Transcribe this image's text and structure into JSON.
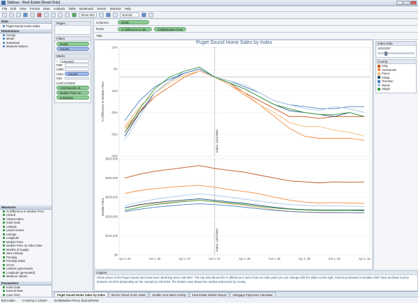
{
  "window": {
    "title": "Tableau - Real Estate [Read-Only]"
  },
  "menu": [
    "File",
    "Edit",
    "View",
    "Format",
    "Data",
    "Analysis",
    "Table",
    "Bookmark",
    "Server",
    "Window",
    "Help"
  ],
  "toolbar": {
    "show_me": "Show Me!",
    "fit": "Normal"
  },
  "data_pane": {
    "header": "Data",
    "datasource": "Puget Sound Home Sales",
    "dimensions_header": "Dimensions",
    "dimensions": [
      "County",
      "Month",
      "IndexDate",
      "Measure Names"
    ],
    "measures_header": "Measures",
    "measures": [
      "% Difference in Median Price",
      "Closed",
      "Closed Sales",
      "Index Date",
      "Latitude",
      "Listed Homes",
      "Listings",
      "Longitude",
      "Median Price",
      "Median Price on Index Date",
      "Months of Supply",
      "New Listings",
      "Pending",
      "Pending Sales",
      "SAAS",
      "Latitude (generated)",
      "Longitude (generated)",
      "Measure Values"
    ],
    "parameters_header": "Parameters",
    "parameters": [
      "Index Date",
      "Interest Rate",
      "Loan Term",
      "min bathrooms"
    ]
  },
  "cards": {
    "pages": "Pages",
    "filters": "Filters",
    "filter_pills": [
      "Month",
      "County"
    ],
    "marks": "Marks",
    "mark_type": "Automatic",
    "mark_props": [
      "Path",
      "Label",
      "Color",
      "Size"
    ],
    "color_pill": "County",
    "lod_label": "Level of Detail",
    "lod_pills": [
      "AGG(Months of ...",
      "Median Price on ...",
      "IndexDate"
    ]
  },
  "shelves": {
    "columns_label": "Columns",
    "columns_pill": "Month",
    "rows_label": "Rows",
    "rows_pills": [
      "% Difference in Me...",
      "SUM(Median Price)"
    ],
    "title_label": "Title"
  },
  "viz": {
    "title": "Puget Sound Home Sales by Index",
    "index_label": "Index: 10/1/2007"
  },
  "legend": {
    "index_header": "Index Date",
    "index_value": "10/1/2007",
    "county_header": "County",
    "counties": [
      {
        "name": "King",
        "color": "#c0501e"
      },
      {
        "name": "Snohomish",
        "color": "#f4893a"
      },
      {
        "name": "Pierce",
        "color": "#f5b97a"
      },
      {
        "name": "Kitsap",
        "color": "#1f4e79"
      },
      {
        "name": "Thurston",
        "color": "#4a7fbd"
      },
      {
        "name": "Island",
        "color": "#a7c7e7"
      },
      {
        "name": "Skagit",
        "color": "#3a9a3a"
      }
    ]
  },
  "caption": {
    "header": "Caption",
    "text": "Home prices in the Puget Sound area have been declining since mid-2007. The top view shows the % difference in price from an index point you can change with the slider on the right. Homes purchased in October 2007 have declined in price between 10-30% (depending on the county) by mid 2010. The bottom view shows the median sales price by county."
  },
  "tabs": [
    "Puget Sound Home Sales by Index",
    "Mercer Island Home Sales",
    "Seattle Area Sales Activity",
    "Real Estate Market Report",
    "Mortgage Payments Calculator"
  ],
  "status": {
    "marks": "503 marks",
    "rows": "2 rows by 1 column",
    "sum": "SUM(Median Price): $110,549,915"
  },
  "chart_data": [
    {
      "type": "line",
      "ylabel": "% Difference in Median Price",
      "y_ticks": [
        "10%",
        "0%",
        "-10%",
        "-20%",
        "-30%",
        "-40%"
      ],
      "ylim": [
        -40,
        15
      ],
      "x": [
        "Apr 1, 06",
        "Jul 1, 06",
        "Oct 1, 06",
        "Jan 1, 07",
        "Apr 1, 07",
        "Jul 1, 07",
        "Oct 1, 07",
        "Jan 1, 08",
        "Apr 1, 08",
        "Jul 1, 08",
        "Oct 1, 08",
        "Jan 1, 09",
        "Apr 1, 09",
        "Jul 1, 09",
        "Oct 1, 09",
        "Jan 1, 10",
        "Apr 1, 10"
      ],
      "series": [
        {
          "name": "King",
          "values": [
            -28,
            -18,
            -10,
            -5,
            0,
            3,
            0,
            -3,
            -8,
            -12,
            -16,
            -20,
            -20,
            -21,
            -20,
            -20,
            -20
          ]
        },
        {
          "name": "Snohomish",
          "values": [
            -26,
            -17,
            -10,
            -5,
            0,
            3,
            0,
            -4,
            -9,
            -14,
            -20,
            -26,
            -30,
            -31,
            -31,
            -31,
            -32
          ]
        },
        {
          "name": "Pierce",
          "values": [
            -25,
            -15,
            -8,
            -3,
            1,
            3,
            0,
            -4,
            -8,
            -14,
            -18,
            -23,
            -25,
            -25,
            -27,
            -28,
            -30
          ]
        },
        {
          "name": "Kitsap",
          "values": [
            -30,
            -18,
            -8,
            -2,
            2,
            4,
            0,
            -3,
            -6,
            -10,
            -14,
            -17,
            -18,
            -19,
            -20,
            -18,
            -20
          ]
        },
        {
          "name": "Thurston",
          "values": [
            -22,
            -12,
            -5,
            -1,
            2,
            4,
            0,
            -2,
            -5,
            -8,
            -12,
            -14,
            -15,
            -16,
            -16,
            -15,
            -15
          ]
        },
        {
          "name": "Island",
          "values": [
            -32,
            -20,
            -8,
            -2,
            3,
            5,
            0,
            -2,
            -4,
            -8,
            -12,
            -14,
            -16,
            -17,
            -15,
            -16,
            -18
          ]
        },
        {
          "name": "Skagit",
          "values": [
            -28,
            -16,
            -6,
            0,
            3,
            5,
            0,
            -3,
            -6,
            -10,
            -14,
            -16,
            -18,
            -19,
            -19,
            -18,
            -20
          ]
        }
      ]
    },
    {
      "type": "line",
      "ylabel": "Median Price",
      "y_ticks": [
        "$500,000",
        "$400,000",
        "$300,000",
        "$200,000",
        "$100,000",
        "$0"
      ],
      "ylim": [
        0,
        500000
      ],
      "x": [
        "Apr 1, 06",
        "Jul 1, 06",
        "Oct 1, 06",
        "Jan 1, 07",
        "Apr 1, 07",
        "Jul 1, 07",
        "Oct 1, 07",
        "Jan 1, 08",
        "Apr 1, 08",
        "Jul 1, 08",
        "Oct 1, 08",
        "Jan 1, 09",
        "Apr 1, 09",
        "Jul 1, 09",
        "Oct 1, 09",
        "Jan 1, 10",
        "Apr 1, 10"
      ],
      "series": [
        {
          "name": "King",
          "values": [
            400000,
            420000,
            435000,
            445000,
            455000,
            465000,
            450000,
            440000,
            430000,
            415000,
            400000,
            385000,
            380000,
            375000,
            380000,
            378000,
            380000
          ]
        },
        {
          "name": "Snohomish",
          "values": [
            320000,
            335000,
            345000,
            352000,
            358000,
            362000,
            352000,
            340000,
            330000,
            318000,
            300000,
            285000,
            275000,
            270000,
            272000,
            270000,
            268000
          ]
        },
        {
          "name": "Pierce",
          "values": [
            245000,
            258000,
            268000,
            274000,
            280000,
            284000,
            276000,
            266000,
            256000,
            246000,
            236000,
            228000,
            224000,
            222000,
            222000,
            220000,
            220000
          ]
        },
        {
          "name": "Kitsap",
          "values": [
            245000,
            262000,
            272000,
            280000,
            286000,
            292000,
            284000,
            276000,
            268000,
            258000,
            248000,
            240000,
            236000,
            234000,
            234000,
            234000,
            234000
          ]
        },
        {
          "name": "Thurston",
          "values": [
            225000,
            238000,
            248000,
            255000,
            262000,
            266000,
            262000,
            256000,
            248000,
            240000,
            232000,
            226000,
            222000,
            220000,
            220000,
            220000,
            218000
          ]
        },
        {
          "name": "Island",
          "values": [
            255000,
            275000,
            290000,
            300000,
            310000,
            318000,
            310000,
            300000,
            290000,
            280000,
            270000,
            262000,
            258000,
            255000,
            256000,
            254000,
            252000
          ]
        },
        {
          "name": "Skagit",
          "values": [
            232000,
            248000,
            262000,
            270000,
            278000,
            284000,
            278000,
            270000,
            262000,
            252000,
            244000,
            238000,
            234000,
            232000,
            232000,
            232000,
            230000
          ]
        }
      ]
    }
  ]
}
